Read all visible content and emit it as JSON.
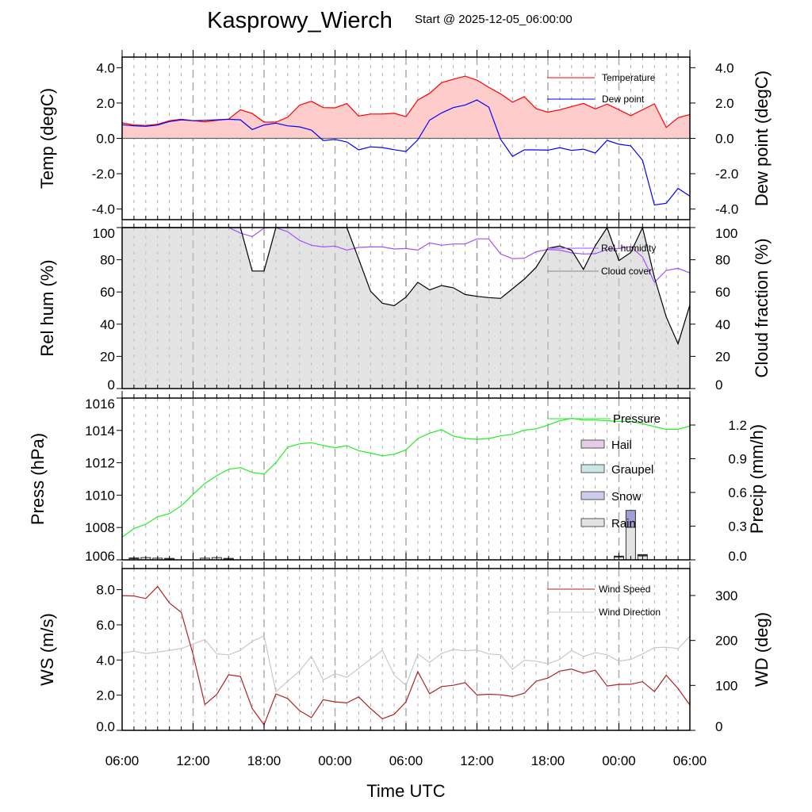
{
  "title": "Kasprowy_Wierch",
  "subtitle": "Start @ 2025-12-05_06:00:00",
  "xlabel": "Time UTC",
  "x_tick_labels": [
    "06:00",
    "12:00",
    "18:00",
    "00:00",
    "06:00",
    "12:00",
    "18:00",
    "00:00",
    "06:00"
  ],
  "colors": {
    "temperature": "#ff0000",
    "temperature_fill": "#ffcccc",
    "dew_point": "#0000ff",
    "rel_humidity": "#a64dff",
    "cloud_cover": "#000000",
    "cloud_fill": "#e3e3e3",
    "pressure": "#22ee22",
    "hail": "#e6cce6",
    "graupel": "#cce6e6",
    "snow": "#ccccee",
    "rain": "#e3e3e3",
    "wind_speed": "#b22222",
    "wind_direction": "#c8c8c8"
  },
  "chart_data": [
    {
      "type": "line",
      "ylabel": "Temp (degC)",
      "ylabel_right": "Dew point (degC)",
      "ylim": [
        -4.6,
        4.6
      ],
      "y_ticks": [
        "4.0",
        "2.0",
        "0.0",
        "-2.0",
        "-4.0"
      ],
      "series": [
        {
          "name": "Temperature",
          "values": [
            0.88,
            0.76,
            0.73,
            0.8,
            1.0,
            1.08,
            1.0,
            0.94,
            1.02,
            1.09,
            1.62,
            1.41,
            0.92,
            0.92,
            1.2,
            1.88,
            2.1,
            1.74,
            1.73,
            1.97,
            1.26,
            1.38,
            1.38,
            1.42,
            1.23,
            2.17,
            2.55,
            3.15,
            3.35,
            3.52,
            3.3,
            2.89,
            2.52,
            2.05,
            2.36,
            1.68,
            1.48,
            1.62,
            1.8,
            1.98,
            1.67,
            1.94,
            1.62,
            1.29,
            1.62,
            1.95,
            0.62,
            1.17,
            1.35
          ]
        },
        {
          "name": "Dew point",
          "values": [
            0.77,
            0.71,
            0.68,
            0.76,
            0.95,
            1.05,
            1.0,
            1.02,
            1.05,
            1.08,
            1.05,
            0.5,
            0.76,
            0.86,
            0.71,
            0.65,
            0.47,
            -0.12,
            -0.06,
            -0.2,
            -0.65,
            -0.48,
            -0.52,
            -0.64,
            -0.74,
            -0.08,
            1.03,
            1.44,
            1.74,
            1.89,
            2.17,
            1.77,
            -0.05,
            -1.02,
            -0.65,
            -0.65,
            -0.67,
            -0.53,
            -0.68,
            -0.61,
            -0.83,
            -0.11,
            -0.33,
            -0.42,
            -1.24,
            -3.77,
            -3.67,
            -2.83,
            -3.27
          ]
        }
      ]
    },
    {
      "type": "area",
      "ylabel": "Rel hum (%)",
      "ylabel_right": "Cloud fraction (%)",
      "ylim": [
        0,
        100
      ],
      "y_ticks": [
        "0",
        "20",
        "40",
        "60",
        "80",
        "100"
      ],
      "series": [
        {
          "name": "Rel. humidity",
          "values": [
            100,
            100,
            100,
            100,
            100,
            100,
            100,
            100,
            100,
            100,
            96.6,
            94.4,
            99.7,
            100,
            97.4,
            92,
            89,
            88,
            88.5,
            86,
            87.7,
            88,
            88,
            86.7,
            87,
            86,
            90.5,
            89,
            89.8,
            89.8,
            93,
            93,
            83.6,
            80.7,
            81,
            85,
            86.4,
            86,
            84.3,
            83.6,
            83.8,
            86.4,
            87,
            88.2,
            81.7,
            66,
            73.4,
            74.7,
            71.8
          ]
        },
        {
          "name": "Cloud cover",
          "values": [
            100,
            100,
            100,
            100,
            100,
            100,
            100,
            100,
            100,
            100,
            100,
            73,
            73,
            100,
            100,
            100,
            100,
            100,
            100,
            100,
            80.5,
            60.5,
            53,
            51.5,
            56.8,
            66,
            61.3,
            64,
            62.6,
            58.4,
            57.3,
            56.5,
            56,
            62,
            68,
            75.3,
            87.2,
            88.5,
            86,
            74,
            88.7,
            100,
            79.5,
            84.5,
            100,
            69,
            44.5,
            27.8,
            52
          ]
        }
      ]
    },
    {
      "type": "line",
      "ylabel": "Press (hPa)",
      "ylabel_right": "Precip (mm/h)",
      "ylim": [
        1006,
        1016
      ],
      "ylim_right": [
        0,
        1.44
      ],
      "y_ticks": [
        "1006",
        "1008",
        "1010",
        "1012",
        "1014",
        "1016"
      ],
      "y_ticks_right": [
        "0.0",
        "0.3",
        "0.6",
        "0.9",
        "1.2"
      ],
      "series": [
        {
          "name": "Pressure",
          "values": [
            1007.4,
            1007.93,
            1008.2,
            1008.67,
            1008.86,
            1009.34,
            1010.05,
            1010.72,
            1011.2,
            1011.6,
            1011.7,
            1011.4,
            1011.3,
            1012.0,
            1012.96,
            1013.17,
            1013.24,
            1013.07,
            1012.93,
            1013.06,
            1012.75,
            1012.6,
            1012.43,
            1012.53,
            1012.8,
            1013.5,
            1013.83,
            1014.05,
            1013.65,
            1013.5,
            1013.45,
            1013.5,
            1013.66,
            1013.76,
            1014.02,
            1014.1,
            1014.33,
            1014.6,
            1014.75,
            1014.64,
            1014.64,
            1014.6,
            1014.56,
            1014.56,
            1014.4,
            1014.24,
            1014.07,
            1014.07,
            1014.27
          ]
        },
        {
          "name": "Hail",
          "values": [
            0,
            0,
            0,
            0,
            0,
            0,
            0,
            0,
            0,
            0,
            0,
            0,
            0,
            0,
            0,
            0,
            0,
            0,
            0,
            0,
            0,
            0,
            0,
            0,
            0,
            0,
            0,
            0,
            0,
            0,
            0,
            0,
            0,
            0,
            0,
            0,
            0,
            0,
            0,
            0,
            0,
            0,
            0,
            0,
            0,
            0,
            0,
            0,
            0
          ]
        },
        {
          "name": "Graupel",
          "values": [
            0,
            0,
            0,
            0,
            0,
            0,
            0,
            0,
            0,
            0,
            0,
            0,
            0,
            0,
            0,
            0,
            0,
            0,
            0,
            0,
            0,
            0,
            0,
            0,
            0,
            0,
            0,
            0,
            0,
            0,
            0,
            0,
            0,
            0,
            0,
            0,
            0,
            0,
            0,
            0,
            0,
            0,
            0,
            0,
            0,
            0,
            0,
            0,
            0
          ]
        },
        {
          "name": "Snow",
          "values": [
            0,
            0.005,
            0,
            0,
            0.005,
            0,
            0,
            0,
            0,
            0.005,
            0,
            0,
            0,
            0,
            0,
            0,
            0,
            0,
            0,
            0,
            0,
            0,
            0,
            0,
            0,
            0,
            0,
            0,
            0,
            0,
            0,
            0,
            0,
            0,
            0,
            0,
            0,
            0,
            0,
            0,
            0,
            0,
            0.008,
            0.15,
            0.012,
            0,
            0,
            0,
            0
          ]
        },
        {
          "name": "Rain",
          "values": [
            0,
            0.012,
            0.02,
            0.015,
            0.008,
            0,
            0,
            0.015,
            0.02,
            0.008,
            0,
            0,
            0,
            0,
            0,
            0,
            0,
            0,
            0,
            0,
            0,
            0,
            0,
            0,
            0,
            0,
            0,
            0,
            0,
            0,
            0,
            0,
            0,
            0,
            0,
            0,
            0,
            0,
            0,
            0,
            0,
            0,
            0.025,
            0.29,
            0.035,
            0,
            0,
            0,
            0
          ]
        }
      ]
    },
    {
      "type": "line",
      "ylabel": "WS (m/s)",
      "ylabel_right": "WD (deg)",
      "ylim": [
        0,
        9.2
      ],
      "ylim_right": [
        0,
        360
      ],
      "y_ticks": [
        "0.0",
        "2.0",
        "4.0",
        "6.0",
        "8.0"
      ],
      "y_ticks_right": [
        "0",
        "100",
        "200",
        "300"
      ],
      "series": [
        {
          "name": "Wind Speed",
          "values": [
            7.66,
            7.64,
            7.49,
            8.18,
            7.24,
            6.71,
            4.31,
            1.47,
            2.04,
            3.16,
            3.06,
            1.24,
            0.31,
            2.07,
            1.81,
            1.12,
            0.72,
            1.74,
            1.62,
            1.56,
            1.9,
            1.24,
            0.66,
            0.91,
            1.62,
            3.34,
            2.08,
            2.49,
            2.56,
            2.71,
            2.01,
            2.05,
            2.02,
            1.92,
            2.11,
            2.79,
            2.97,
            3.37,
            3.48,
            3.25,
            3.42,
            2.52,
            2.61,
            2.62,
            2.77,
            2.2,
            3.13,
            2.37,
            1.44
          ]
        },
        {
          "name": "Wind Direction",
          "values": [
            172,
            176,
            171,
            174,
            178,
            182,
            192,
            202,
            170,
            168,
            178,
            198,
            210,
            86,
            109,
            132,
            165,
            112,
            126,
            118,
            138,
            158,
            178,
            123,
            100,
            170,
            151,
            171,
            180,
            177,
            179,
            170,
            168,
            136,
            156,
            154,
            148,
            158,
            178,
            164,
            173,
            168,
            154,
            158,
            170,
            184,
            185,
            182,
            209
          ]
        }
      ]
    }
  ]
}
